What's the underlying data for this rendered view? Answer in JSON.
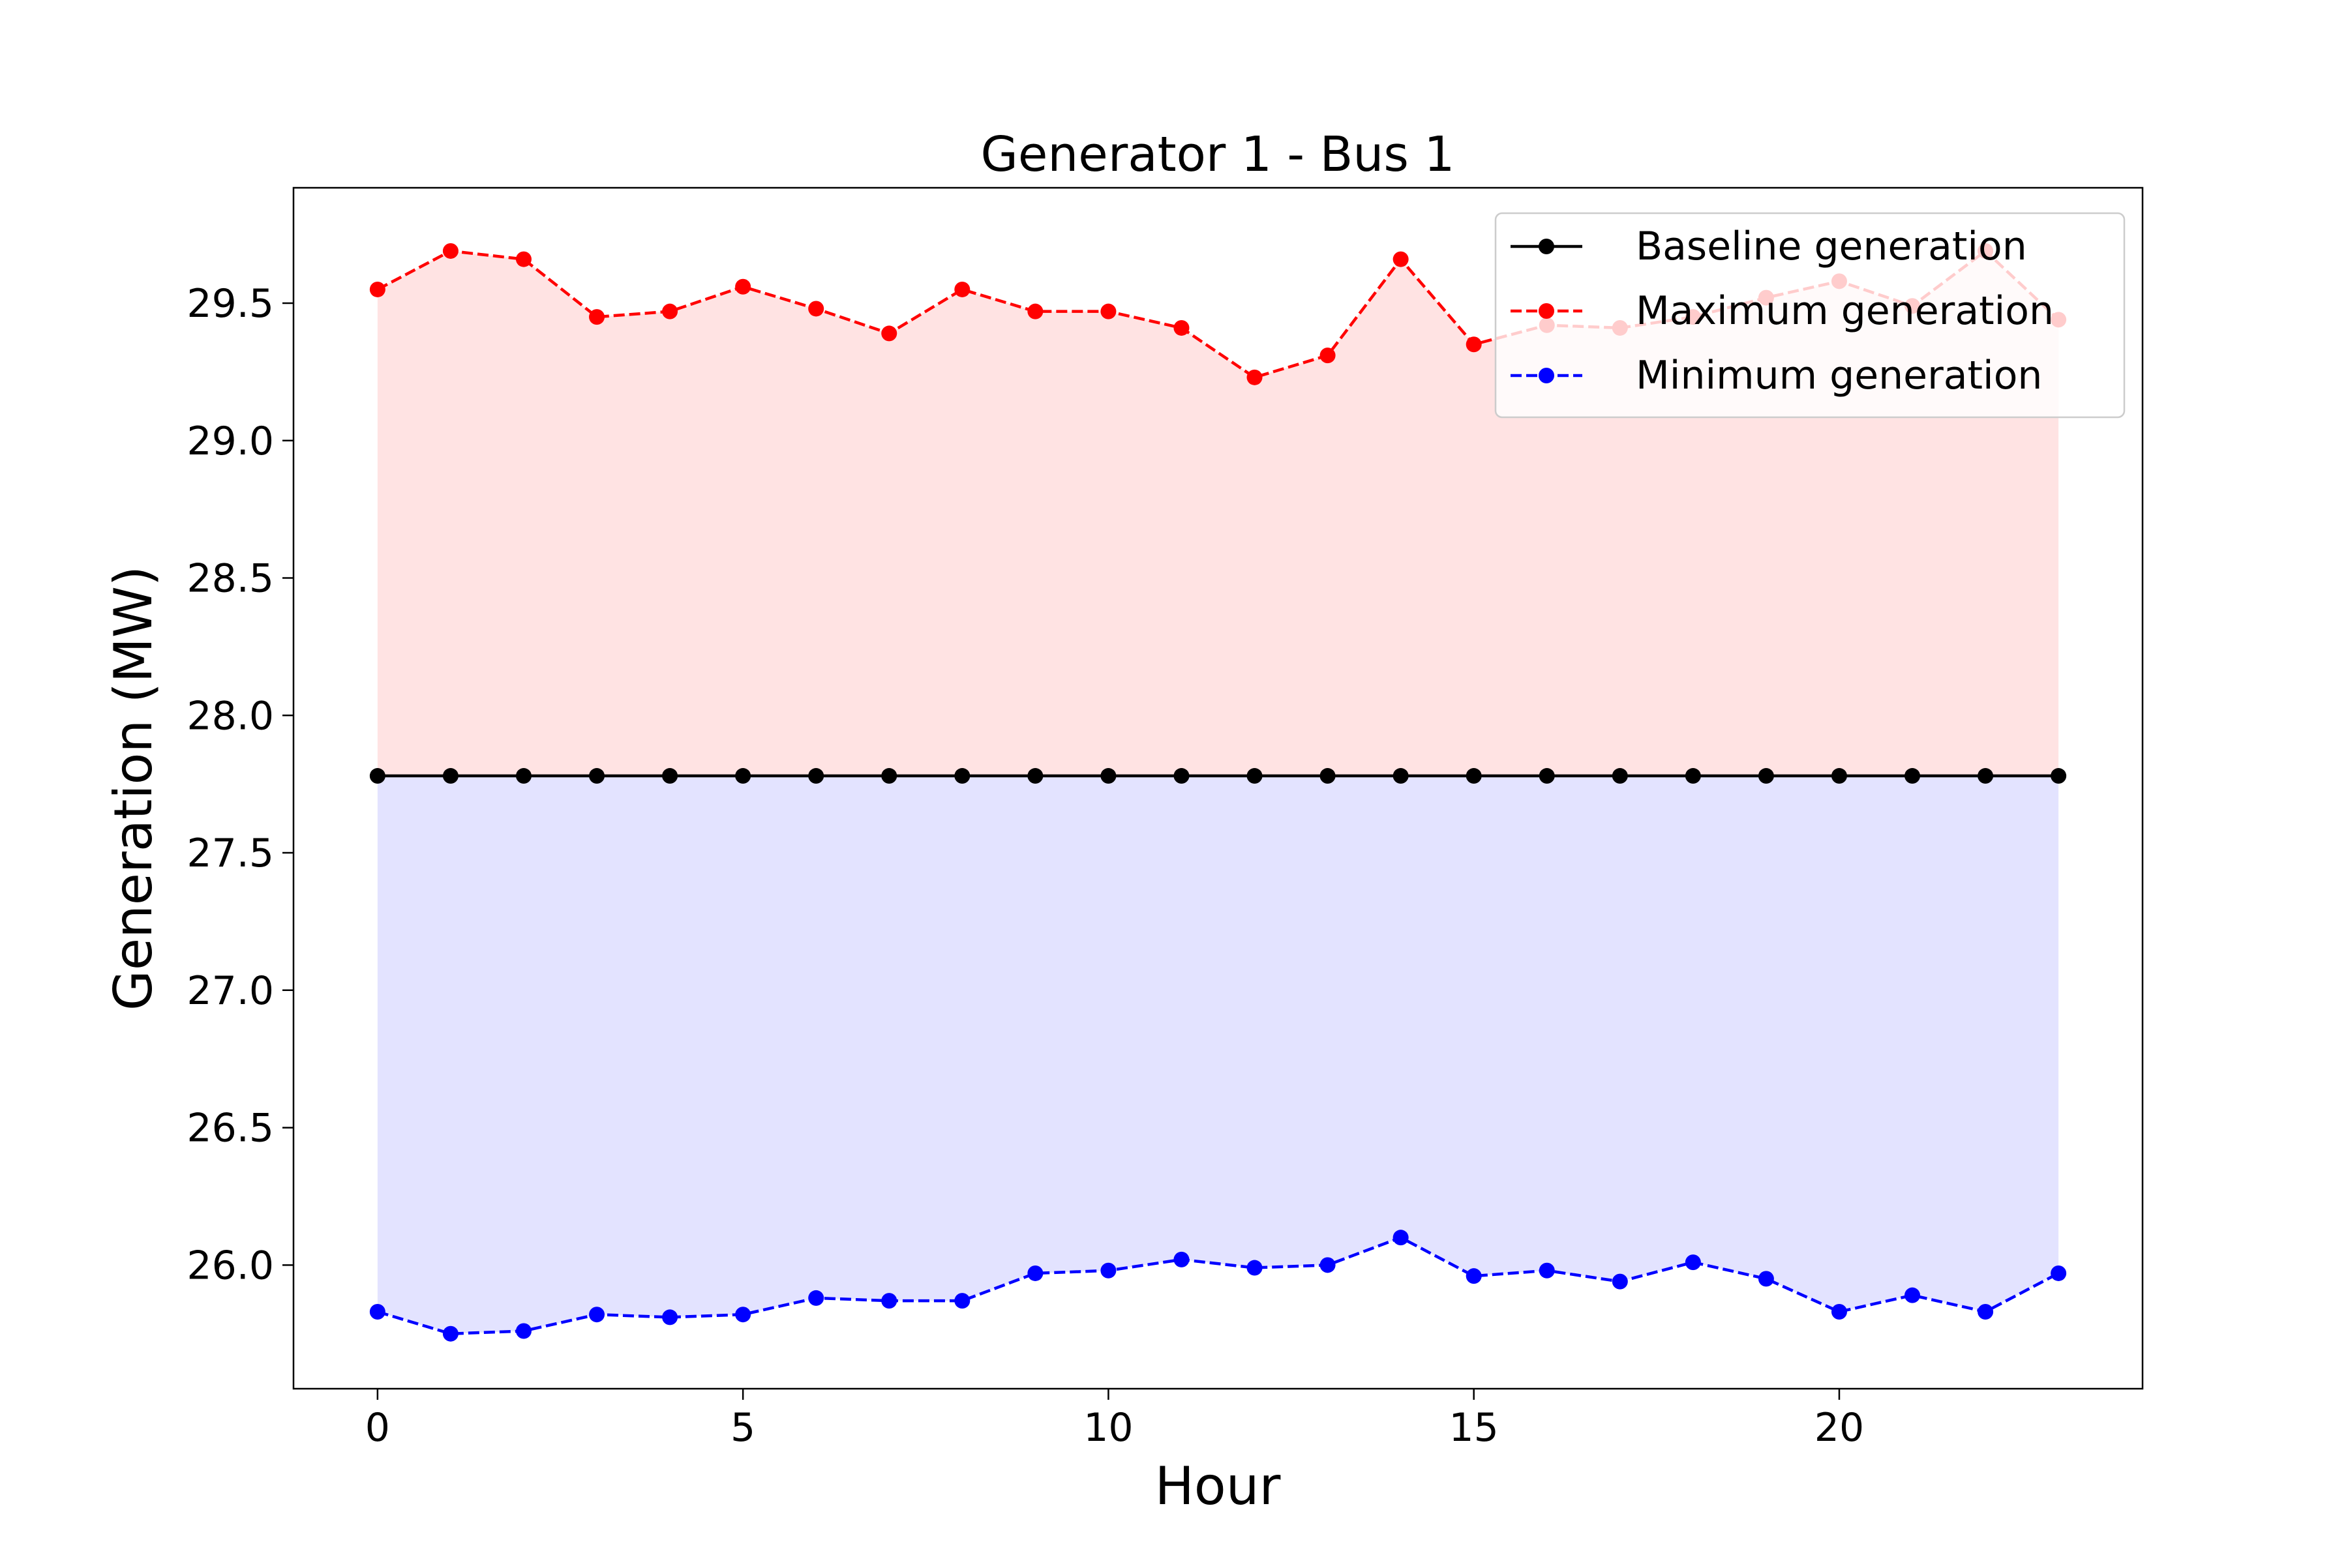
{
  "chart_data": {
    "type": "line",
    "title": "Generator 1 - Bus 1",
    "xlabel": "Hour",
    "ylabel": "Generation (MW)",
    "xlim": [
      -1.15,
      24.15
    ],
    "ylim": [
      25.55,
      29.92
    ],
    "xticks": [
      0,
      5,
      10,
      15,
      20
    ],
    "xtick_labels": [
      "0",
      "5",
      "10",
      "15",
      "20"
    ],
    "yticks": [
      26.0,
      26.5,
      27.0,
      27.5,
      28.0,
      28.5,
      29.0,
      29.5
    ],
    "ytick_labels": [
      "26.0",
      "26.5",
      "27.0",
      "27.5",
      "28.0",
      "28.5",
      "29.0",
      "29.5"
    ],
    "grid": false,
    "legend_position": "top-right",
    "x": [
      0,
      1,
      2,
      3,
      4,
      5,
      6,
      7,
      8,
      9,
      10,
      11,
      12,
      13,
      14,
      15,
      16,
      17,
      18,
      19,
      20,
      21,
      22,
      23
    ],
    "series": [
      {
        "name": "Baseline generation",
        "color": "#000000",
        "line_style": "solid",
        "marker": "circle",
        "values": [
          27.78,
          27.78,
          27.78,
          27.78,
          27.78,
          27.78,
          27.78,
          27.78,
          27.78,
          27.78,
          27.78,
          27.78,
          27.78,
          27.78,
          27.78,
          27.78,
          27.78,
          27.78,
          27.78,
          27.78,
          27.78,
          27.78,
          27.78,
          27.78
        ]
      },
      {
        "name": "Maximum generation",
        "color": "#ff0000",
        "line_style": "dashed",
        "marker": "circle",
        "values": [
          29.55,
          29.69,
          29.66,
          29.45,
          29.47,
          29.56,
          29.48,
          29.39,
          29.55,
          29.47,
          29.47,
          29.41,
          29.23,
          29.31,
          29.66,
          29.35,
          29.42,
          29.41,
          29.45,
          29.52,
          29.58,
          29.49,
          29.69,
          29.44
        ]
      },
      {
        "name": "Minimum generation",
        "color": "#0000ff",
        "line_style": "dashed",
        "marker": "circle",
        "values": [
          25.83,
          25.75,
          25.76,
          25.82,
          25.81,
          25.82,
          25.88,
          25.87,
          25.87,
          25.97,
          25.98,
          26.02,
          25.99,
          26.0,
          26.1,
          25.96,
          25.98,
          25.94,
          26.01,
          25.95,
          25.83,
          25.89,
          25.83,
          25.97
        ]
      }
    ],
    "fill_bands": [
      {
        "between": [
          "Baseline generation",
          "Maximum generation"
        ],
        "color": "#ff0000",
        "opacity": 0.11
      },
      {
        "between": [
          "Minimum generation",
          "Baseline generation"
        ],
        "color": "#0000ff",
        "opacity": 0.11
      }
    ]
  }
}
